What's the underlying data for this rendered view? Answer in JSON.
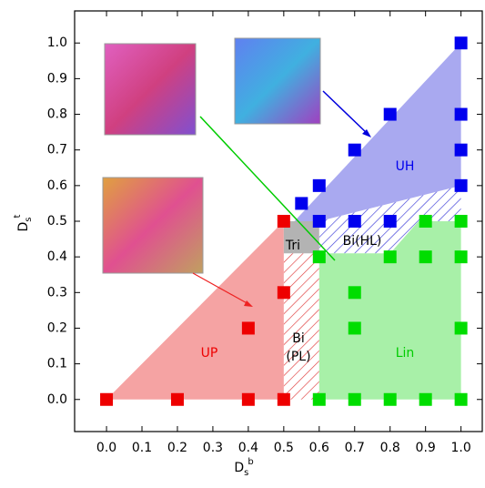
{
  "chart_data": {
    "type": "scatter",
    "xlabel": {
      "base": "D",
      "sub": "s",
      "sup": "b"
    },
    "ylabel": {
      "base": "D",
      "sub": "s",
      "sup": "t"
    },
    "xlim": [
      -0.09,
      1.06
    ],
    "ylim": [
      -0.09,
      1.09
    ],
    "xticks": [
      {
        "value": 0,
        "label": "0.0"
      },
      {
        "value": 0.1,
        "label": "0.1"
      },
      {
        "value": 0.2,
        "label": "0.2"
      },
      {
        "value": 0.3,
        "label": "0.3"
      },
      {
        "value": 0.4,
        "label": "0.4"
      },
      {
        "value": 0.5,
        "label": "0.5"
      },
      {
        "value": 0.6,
        "label": "0.6"
      },
      {
        "value": 0.7,
        "label": "0.7"
      },
      {
        "value": 0.8,
        "label": "0.8"
      },
      {
        "value": 0.9,
        "label": "0.9"
      },
      {
        "value": 1,
        "label": "1.0"
      }
    ],
    "yticks": [
      {
        "value": 0,
        "label": "0.0"
      },
      {
        "value": 0.1,
        "label": "0.1"
      },
      {
        "value": 0.2,
        "label": "0.2"
      },
      {
        "value": 0.3,
        "label": "0.3"
      },
      {
        "value": 0.4,
        "label": "0.4"
      },
      {
        "value": 0.5,
        "label": "0.5"
      },
      {
        "value": 0.6,
        "label": "0.6"
      },
      {
        "value": 0.7,
        "label": "0.7"
      },
      {
        "value": 0.8,
        "label": "0.8"
      },
      {
        "value": 0.9,
        "label": "0.9"
      },
      {
        "value": 1,
        "label": "1.0"
      }
    ],
    "regions": [
      {
        "label": [
          "UP"
        ],
        "color": "#f5a3a3",
        "label_color": "#ee0000",
        "hatch": false,
        "points": [
          [
            0,
            0
          ],
          [
            0.5,
            0
          ],
          [
            0.5,
            0.5
          ]
        ]
      },
      {
        "label": [
          "Lin"
        ],
        "color": "#a8f0a8",
        "label_color": "#00cc00",
        "hatch": false,
        "points": [
          [
            0.6,
            0
          ],
          [
            1,
            0
          ],
          [
            1,
            0.5
          ],
          [
            0.88,
            0.5
          ],
          [
            0.8,
            0.41
          ],
          [
            0.6,
            0.41
          ]
        ]
      },
      {
        "label": [
          "UH"
        ],
        "color": "#a9a9f0",
        "label_color": "#0000ee",
        "hatch": false,
        "points": [
          [
            0.53,
            0.5
          ],
          [
            0.6,
            0.5
          ],
          [
            1,
            0.6
          ],
          [
            1,
            1
          ]
        ]
      },
      {
        "label": [
          "Tri"
        ],
        "color": "#b3b3b3",
        "label_color": "#000000",
        "hatch": false,
        "points": [
          [
            0.5,
            0.41
          ],
          [
            0.6,
            0.41
          ],
          [
            0.6,
            0.5
          ],
          [
            0.5,
            0.5
          ]
        ]
      },
      {
        "label": [
          "Bi(HL)"
        ],
        "color": "#3a3ad8",
        "label_color": "#000000",
        "hatch": true,
        "points": [
          [
            0.6,
            0.41
          ],
          [
            0.8,
            0.41
          ],
          [
            0.88,
            0.5
          ],
          [
            1,
            0.5
          ],
          [
            1,
            0.6
          ],
          [
            0.6,
            0.5
          ]
        ]
      },
      {
        "label": [
          "Bi",
          "(PL)"
        ],
        "color": "#e03a3a",
        "label_color": "#000000",
        "hatch": true,
        "points": [
          [
            0.5,
            0
          ],
          [
            0.6,
            0
          ],
          [
            0.6,
            0.41
          ],
          [
            0.5,
            0.41
          ]
        ]
      }
    ],
    "series": [
      {
        "color": "#ee0000",
        "x": [
          0,
          0.2,
          0.4,
          0.5,
          0.4,
          0.5,
          0.5
        ],
        "values": [
          0,
          0,
          0,
          0,
          0.2,
          0.3,
          0.5
        ]
      },
      {
        "color": "#0000ee",
        "x": [
          0.55,
          0.6,
          0.7,
          0.8,
          1,
          1,
          1,
          1,
          0.6,
          0.7,
          0.8
        ],
        "values": [
          0.55,
          0.6,
          0.7,
          0.8,
          1,
          0.8,
          0.7,
          0.6,
          0.5,
          0.5,
          0.5
        ]
      },
      {
        "color": "#00dd00",
        "x": [
          0.6,
          0.7,
          0.7,
          0.6,
          0.7,
          0.8,
          0.9,
          1,
          0.8,
          0.9,
          0.9,
          1,
          1,
          1
        ],
        "values": [
          0.4,
          0.3,
          0.2,
          0,
          0,
          0,
          0,
          0,
          0.4,
          0.4,
          0.5,
          0.5,
          0.4,
          0.2
        ]
      }
    ]
  }
}
